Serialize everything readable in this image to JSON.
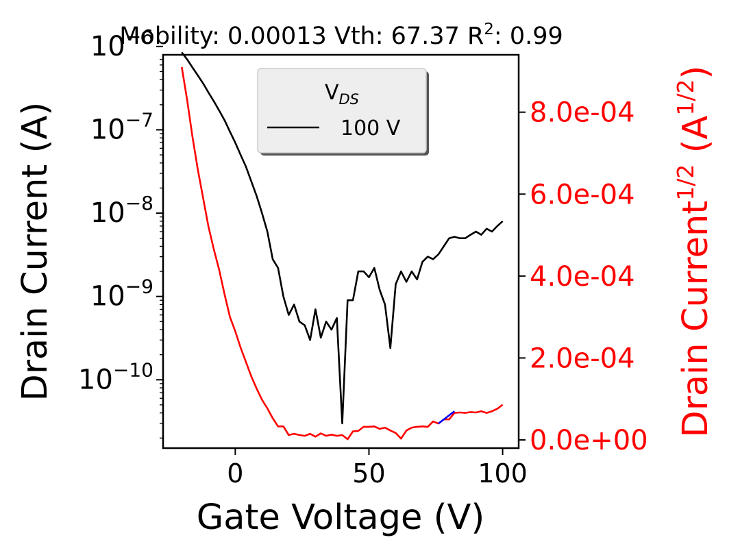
{
  "chart_data": {
    "type": "line",
    "title_parts": {
      "mobility_label": "Mobility: 0.00013 Vth: 67.37 R",
      "r_sup": "2",
      "r_value": ": 0.99"
    },
    "xlabel": "Gate Voltage (V)",
    "ylabel_left": "Drain Current (A)",
    "ylabel_right_parts": {
      "base": "Drain Current",
      "sup": "1/2",
      "open": " (A",
      "unit_sup": "1/2",
      "close": ")"
    },
    "xlim": [
      -27,
      106
    ],
    "ylim_left_log10": [
      -10.82,
      -6.1
    ],
    "ylim_right": [
      -2e-05,
      0.00094
    ],
    "x_ticks": [
      0,
      50,
      100
    ],
    "x_tick_labels": [
      "0",
      "50",
      "100"
    ],
    "y_left_ticks_exp": [
      -6,
      -7,
      -8,
      -9,
      -10
    ],
    "y_left_tick_labels": [
      {
        "base": "10",
        "exp": "−6"
      },
      {
        "base": "10",
        "exp": "−7"
      },
      {
        "base": "10",
        "exp": "−8"
      },
      {
        "base": "10",
        "exp": "−9"
      },
      {
        "base": "10",
        "exp": "−10"
      }
    ],
    "y_right_ticks": [
      0,
      0.0002,
      0.0004,
      0.0006,
      0.0008
    ],
    "y_right_tick_labels": [
      "0.0e+00",
      "2.0e-04",
      "4.0e-04",
      "6.0e-04",
      "8.0e-04"
    ],
    "legend": {
      "title_base": "V",
      "title_sub": "DS",
      "entry": "100 V",
      "placement": "top-center"
    },
    "colors": {
      "drain_current": "#000000",
      "sqrt_drain_current": "#ff0000",
      "fit_segment": "#0000ff",
      "right_axis_text": "#ff0000"
    },
    "series": [
      {
        "name": "100 V",
        "axis": "left",
        "x": [
          -20,
          -18,
          -16,
          -14,
          -12,
          -10,
          -8,
          -6,
          -4,
          -2,
          0,
          2,
          4,
          6,
          8,
          10,
          12,
          14,
          16,
          18,
          20,
          22,
          24,
          26,
          28,
          30,
          32,
          34,
          36,
          38,
          40,
          42,
          44,
          46,
          48,
          50,
          52,
          54,
          56,
          58,
          60,
          62,
          64,
          66,
          68,
          70,
          72,
          74,
          76,
          78,
          80,
          82,
          84,
          86,
          88,
          90,
          92,
          94,
          96,
          98,
          100
        ],
        "y": [
          8.5e-07,
          7e-07,
          5.6e-07,
          4.5e-07,
          3.6e-07,
          2.8e-07,
          2.2e-07,
          1.7e-07,
          1.3e-07,
          9.5e-08,
          7e-08,
          5e-08,
          3.6e-08,
          2.4e-08,
          1.6e-08,
          1e-08,
          6e-09,
          2.8e-09,
          2.2e-09,
          1e-09,
          6e-10,
          8e-10,
          5e-10,
          4.5e-10,
          3e-10,
          7e-10,
          3.2e-10,
          5e-10,
          4e-10,
          5.5e-10,
          3e-11,
          9e-10,
          9e-10,
          2e-09,
          2e-09,
          1.7e-09,
          2.2e-09,
          1.2e-09,
          8e-10,
          2.4e-10,
          1.4e-09,
          2e-09,
          1.5e-09,
          2e-09,
          1.6e-09,
          2.6e-09,
          3e-09,
          2.8e-09,
          3.2e-09,
          4e-09,
          5e-09,
          5.2e-09,
          5e-09,
          5e-09,
          5.5e-09,
          6e-09,
          5.5e-09,
          6.5e-09,
          6e-09,
          7e-09,
          8e-09
        ]
      },
      {
        "axis": "right",
        "x": [
          -20,
          -18,
          -16,
          -14,
          -12,
          -10,
          -8,
          -6,
          -4,
          -2,
          0,
          2,
          4,
          6,
          8,
          10,
          12,
          14,
          16,
          18,
          20,
          22,
          24,
          26,
          28,
          30,
          32,
          34,
          36,
          38,
          40,
          42,
          44,
          46,
          48,
          50,
          52,
          54,
          56,
          58,
          60,
          62,
          64,
          66,
          68,
          70,
          72,
          74,
          76,
          78,
          80,
          82,
          84,
          86,
          88,
          90,
          92,
          94,
          96,
          98,
          100
        ],
        "y": [
          0.00091,
          0.00083,
          0.00074,
          0.00066,
          0.00059,
          0.00052,
          0.000465,
          0.000415,
          0.000355,
          0.0003,
          0.000265,
          0.000225,
          0.00019,
          0.000155,
          0.000125,
          9.8e-05,
          7.7e-05,
          5.3e-05,
          3.3e-05,
          3.3e-05,
          1.2e-05,
          1.5e-05,
          1.2e-05,
          1e-05,
          1.5e-05,
          8e-06,
          1.6e-05,
          1e-05,
          1.3e-05,
          1e-05,
          1.2e-05,
          1.5e-06,
          2.1e-05,
          2.2e-05,
          3.2e-05,
          3.2e-05,
          3.3e-05,
          2.7e-05,
          3e-05,
          2.3e-05,
          1.7e-05,
          3e-06,
          2.3e-05,
          3e-05,
          3.2e-05,
          3.3e-05,
          3.2e-05,
          4.5e-05,
          4e-05,
          5e-05,
          5e-05,
          6.6e-05,
          6.7e-05,
          6.6e-05,
          6.8e-05,
          6.7e-05,
          7e-05,
          6.6e-05,
          7e-05,
          7.6e-05,
          8.6e-05
        ]
      },
      {
        "axis": "right",
        "x": [
          76,
          82
        ],
        "y": [
          4e-05,
          7e-05
        ]
      }
    ]
  }
}
